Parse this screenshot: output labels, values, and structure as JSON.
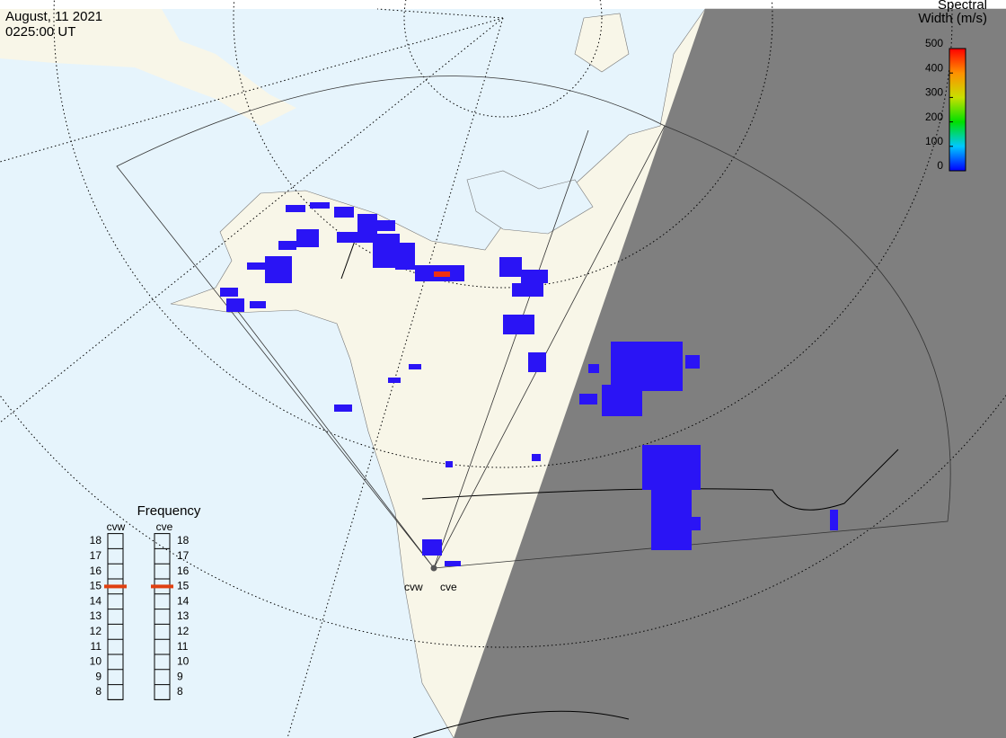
{
  "header": {
    "date": "August, 11 2021",
    "time": "0225:00 UT"
  },
  "colorbar": {
    "title": [
      "Spectral",
      "Width (m/s)"
    ],
    "ticks": [
      0,
      100,
      200,
      300,
      400,
      500
    ]
  },
  "frequency": {
    "title": "Frequency",
    "ticks": [
      8,
      9,
      10,
      11,
      12,
      13,
      14,
      15,
      16,
      17,
      18
    ],
    "radars": [
      {
        "name": "cvw",
        "value": 15
      },
      {
        "name": "cve",
        "value": 15
      }
    ]
  },
  "map": {
    "radar_labels": [
      "cvw",
      "cve"
    ]
  }
}
